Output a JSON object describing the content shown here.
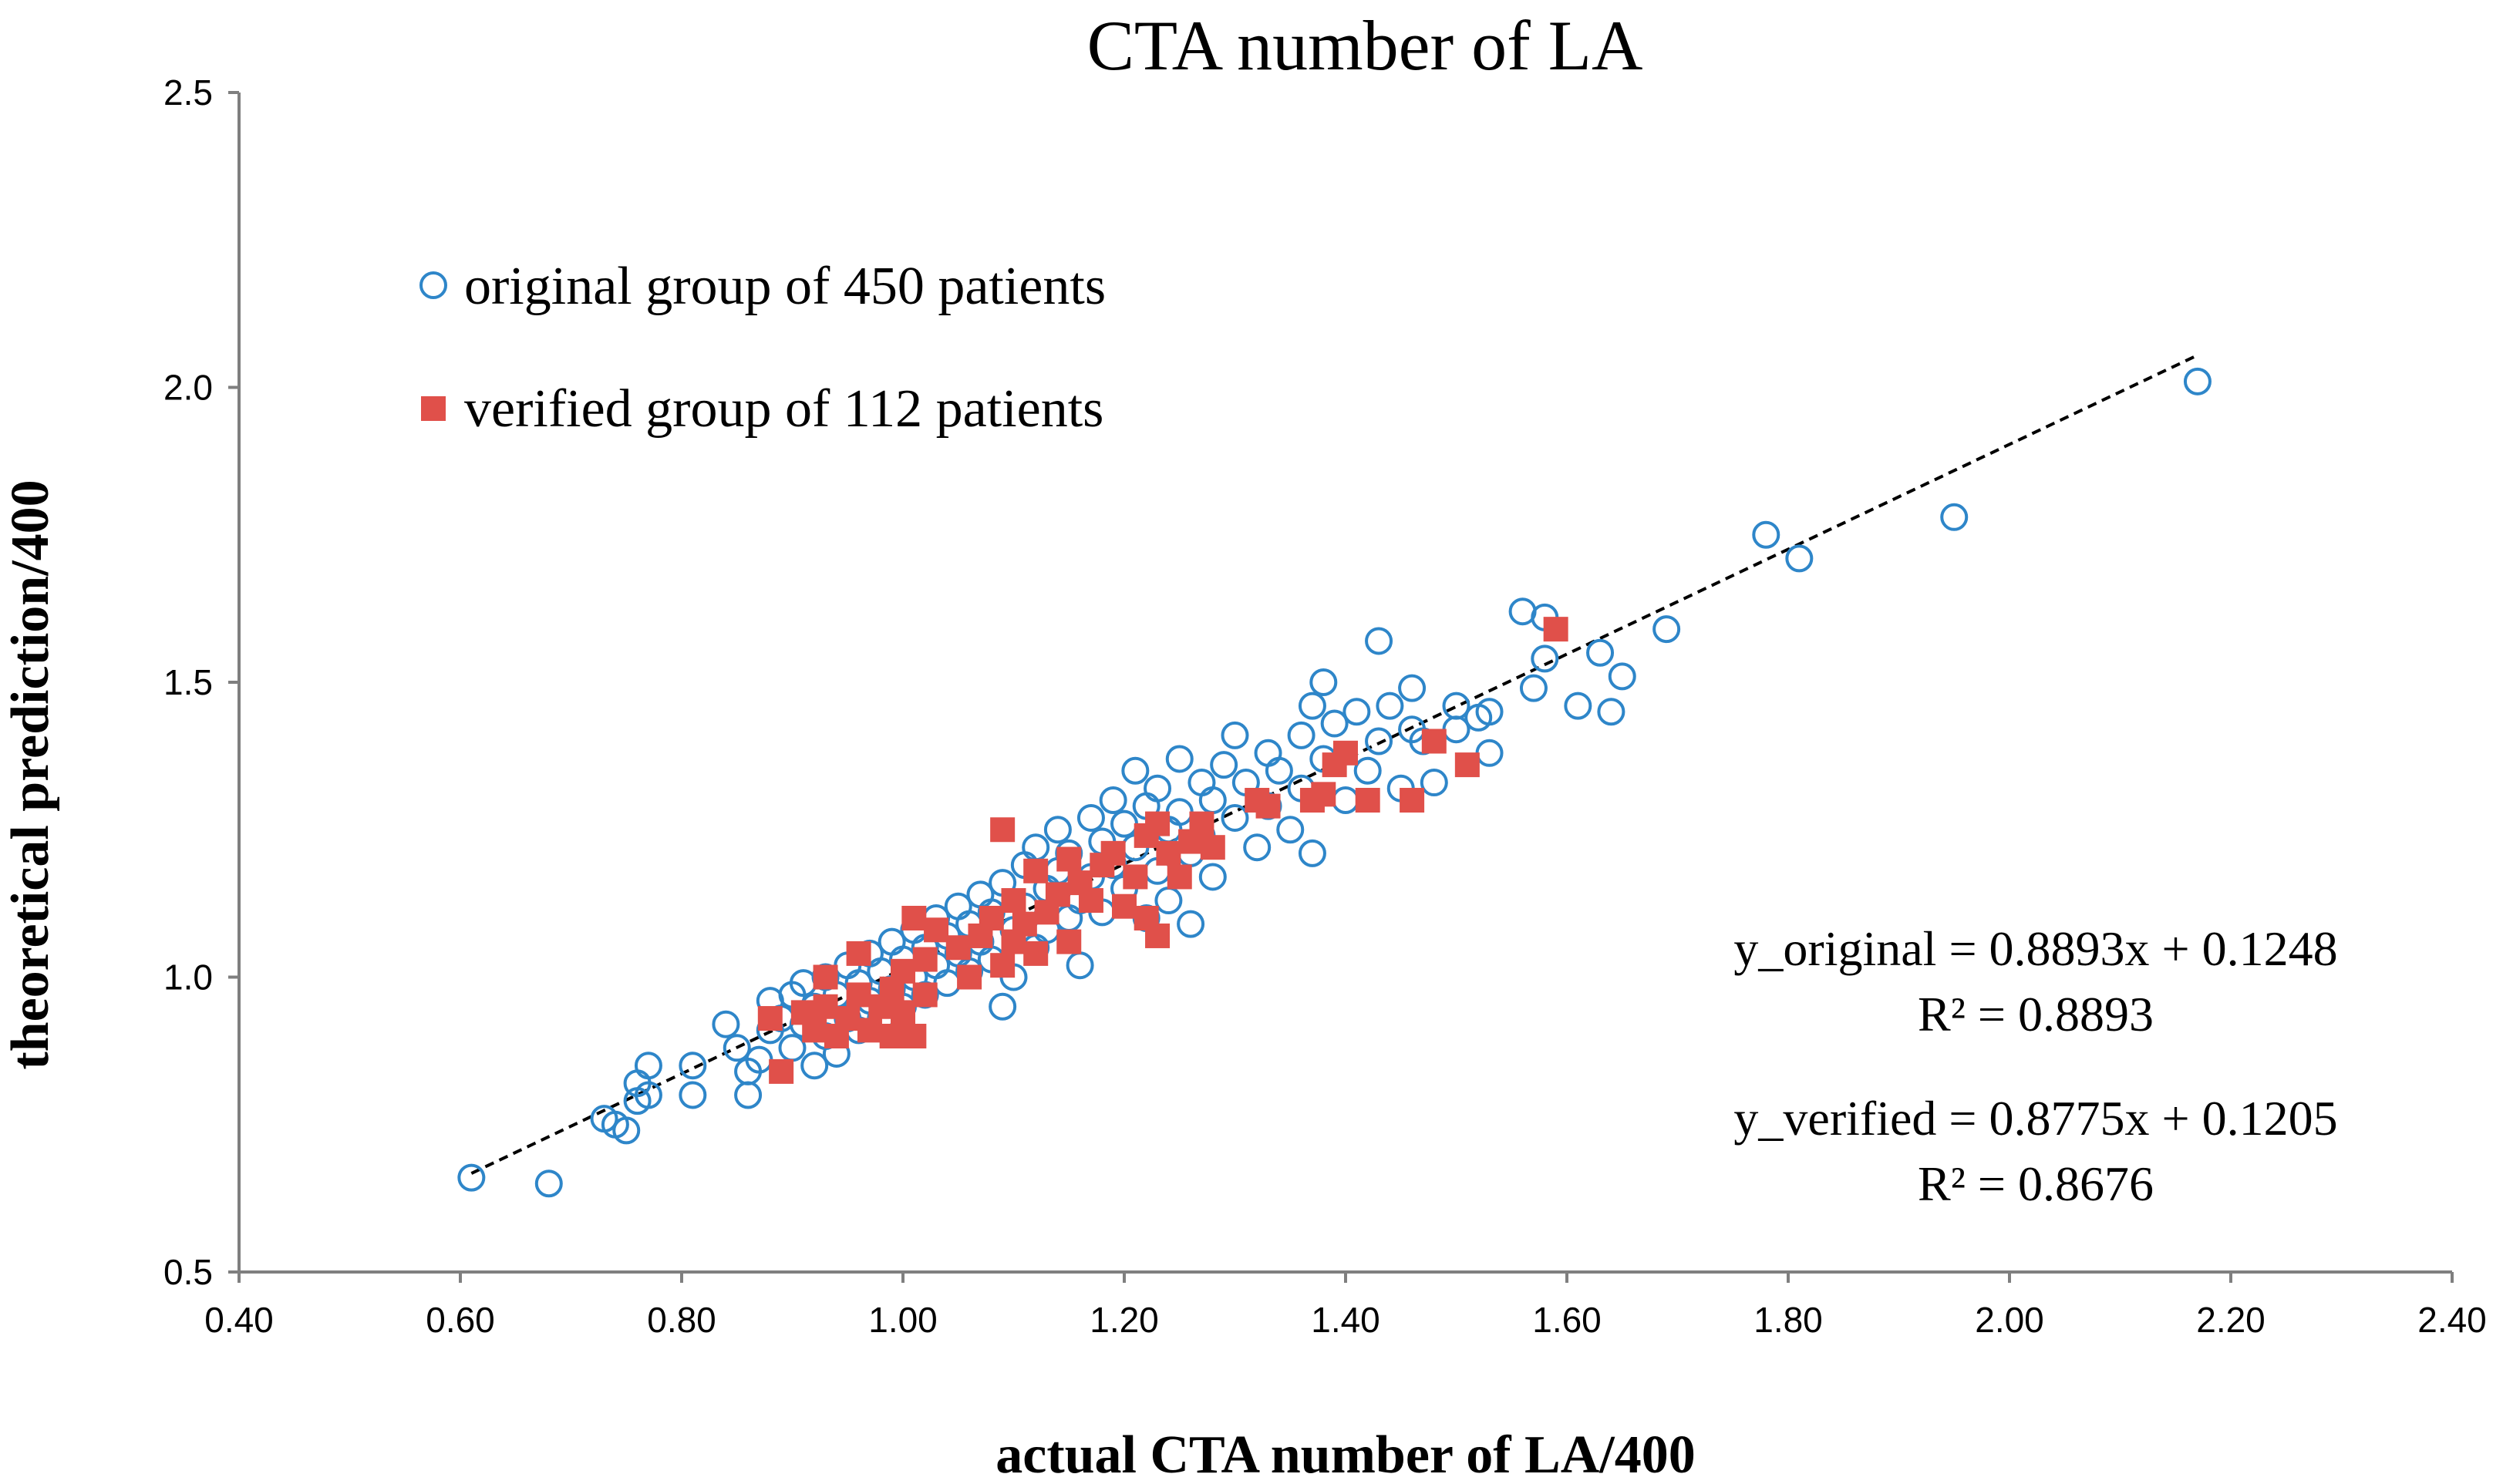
{
  "chart_data": {
    "type": "scatter",
    "title": "CTA number of LA",
    "xlabel": "actual CTA number of LA/400",
    "ylabel": "theoretical prediction/400",
    "xlim": [
      0.4,
      2.4
    ],
    "ylim": [
      0.5,
      2.5
    ],
    "x_ticks": [
      "0.40",
      "0.60",
      "0.80",
      "1.00",
      "1.20",
      "1.40",
      "1.60",
      "1.80",
      "2.00",
      "2.20",
      "2.40"
    ],
    "y_ticks": [
      "0.5",
      "1.0",
      "1.5",
      "2.0",
      "2.5"
    ],
    "grid": false,
    "legend_position": "top-left",
    "series": [
      {
        "name": "original group of 450 patients",
        "marker": "open-circle",
        "color": "#2E86C9",
        "points": [
          [
            0.61,
            0.66
          ],
          [
            0.68,
            0.65
          ],
          [
            0.73,
            0.76
          ],
          [
            0.74,
            0.75
          ],
          [
            0.75,
            0.74
          ],
          [
            0.76,
            0.79
          ],
          [
            0.76,
            0.82
          ],
          [
            0.77,
            0.8
          ],
          [
            0.77,
            0.85
          ],
          [
            0.81,
            0.8
          ],
          [
            0.81,
            0.85
          ],
          [
            0.84,
            0.92
          ],
          [
            0.85,
            0.88
          ],
          [
            0.86,
            0.8
          ],
          [
            0.86,
            0.84
          ],
          [
            0.87,
            0.86
          ],
          [
            0.88,
            0.91
          ],
          [
            0.88,
            0.96
          ],
          [
            0.89,
            0.93
          ],
          [
            0.9,
            0.88
          ],
          [
            0.9,
            0.97
          ],
          [
            0.91,
            0.92
          ],
          [
            0.91,
            0.99
          ],
          [
            0.92,
            0.85
          ],
          [
            0.92,
            0.95
          ],
          [
            0.93,
            0.9
          ],
          [
            0.93,
            1.0
          ],
          [
            0.94,
            0.97
          ],
          [
            0.94,
            0.87
          ],
          [
            0.95,
            0.93
          ],
          [
            0.95,
            1.02
          ],
          [
            0.96,
            0.99
          ],
          [
            0.96,
            0.91
          ],
          [
            0.97,
            1.04
          ],
          [
            0.97,
            0.96
          ],
          [
            0.98,
            1.01
          ],
          [
            0.98,
            0.93
          ],
          [
            0.99,
            1.06
          ],
          [
            0.99,
            0.98
          ],
          [
            1.0,
            1.03
          ],
          [
            1.0,
            0.95
          ],
          [
            1.01,
            1.08
          ],
          [
            1.01,
            1.0
          ],
          [
            1.02,
            1.05
          ],
          [
            1.02,
            0.97
          ],
          [
            1.03,
            1.1
          ],
          [
            1.03,
            1.02
          ],
          [
            1.04,
            1.07
          ],
          [
            1.04,
            0.99
          ],
          [
            1.05,
            1.12
          ],
          [
            1.05,
            1.04
          ],
          [
            1.06,
            1.09
          ],
          [
            1.06,
            1.01
          ],
          [
            1.07,
            1.14
          ],
          [
            1.07,
            1.06
          ],
          [
            1.08,
            1.11
          ],
          [
            1.08,
            1.03
          ],
          [
            1.09,
            0.95
          ],
          [
            1.09,
            1.16
          ],
          [
            1.1,
            1.08
          ],
          [
            1.1,
            1.0
          ],
          [
            1.11,
            1.19
          ],
          [
            1.11,
            1.12
          ],
          [
            1.12,
            1.22
          ],
          [
            1.12,
            1.05
          ],
          [
            1.13,
            1.15
          ],
          [
            1.13,
            1.08
          ],
          [
            1.14,
            1.25
          ],
          [
            1.14,
            1.18
          ],
          [
            1.15,
            1.1
          ],
          [
            1.15,
            1.21
          ],
          [
            1.16,
            1.13
          ],
          [
            1.16,
            1.02
          ],
          [
            1.17,
            1.27
          ],
          [
            1.17,
            1.17
          ],
          [
            1.18,
            1.23
          ],
          [
            1.18,
            1.11
          ],
          [
            1.19,
            1.3
          ],
          [
            1.19,
            1.19
          ],
          [
            1.2,
            1.26
          ],
          [
            1.2,
            1.15
          ],
          [
            1.21,
            1.35
          ],
          [
            1.21,
            1.22
          ],
          [
            1.22,
            1.29
          ],
          [
            1.22,
            1.1
          ],
          [
            1.23,
            1.32
          ],
          [
            1.23,
            1.18
          ],
          [
            1.24,
            1.25
          ],
          [
            1.24,
            1.13
          ],
          [
            1.25,
            1.37
          ],
          [
            1.25,
            1.28
          ],
          [
            1.26,
            1.21
          ],
          [
            1.26,
            1.09
          ],
          [
            1.27,
            1.33
          ],
          [
            1.27,
            1.24
          ],
          [
            1.28,
            1.3
          ],
          [
            1.28,
            1.17
          ],
          [
            1.29,
            1.36
          ],
          [
            1.3,
            1.41
          ],
          [
            1.3,
            1.27
          ],
          [
            1.31,
            1.33
          ],
          [
            1.32,
            1.22
          ],
          [
            1.33,
            1.38
          ],
          [
            1.33,
            1.29
          ],
          [
            1.34,
            1.35
          ],
          [
            1.35,
            1.25
          ],
          [
            1.36,
            1.41
          ],
          [
            1.36,
            1.32
          ],
          [
            1.37,
            1.46
          ],
          [
            1.37,
            1.21
          ],
          [
            1.38,
            1.5
          ],
          [
            1.38,
            1.37
          ],
          [
            1.39,
            1.43
          ],
          [
            1.4,
            1.3
          ],
          [
            1.41,
            1.45
          ],
          [
            1.42,
            1.35
          ],
          [
            1.43,
            1.57
          ],
          [
            1.43,
            1.4
          ],
          [
            1.44,
            1.46
          ],
          [
            1.45,
            1.32
          ],
          [
            1.46,
            1.49
          ],
          [
            1.46,
            1.42
          ],
          [
            1.47,
            1.4
          ],
          [
            1.48,
            1.33
          ],
          [
            1.5,
            1.46
          ],
          [
            1.5,
            1.42
          ],
          [
            1.52,
            1.44
          ],
          [
            1.53,
            1.38
          ],
          [
            1.53,
            1.45
          ],
          [
            1.56,
            1.62
          ],
          [
            1.57,
            1.49
          ],
          [
            1.58,
            1.54
          ],
          [
            1.58,
            1.61
          ],
          [
            1.61,
            1.46
          ],
          [
            1.63,
            1.55
          ],
          [
            1.64,
            1.45
          ],
          [
            1.65,
            1.51
          ],
          [
            1.69,
            1.59
          ],
          [
            1.78,
            1.75
          ],
          [
            1.81,
            1.71
          ],
          [
            1.95,
            1.78
          ],
          [
            2.17,
            2.01
          ]
        ]
      },
      {
        "name": "verified group of 112 patients",
        "marker": "filled-square",
        "color": "#E0504A",
        "points": [
          [
            0.88,
            0.93
          ],
          [
            0.89,
            0.84
          ],
          [
            0.91,
            0.94
          ],
          [
            0.92,
            0.91
          ],
          [
            0.93,
            0.95
          ],
          [
            0.93,
            1.0
          ],
          [
            0.94,
            0.9
          ],
          [
            0.95,
            0.93
          ],
          [
            0.96,
            0.97
          ],
          [
            0.96,
            1.04
          ],
          [
            0.97,
            0.91
          ],
          [
            0.98,
            0.95
          ],
          [
            0.99,
            0.98
          ],
          [
            0.99,
            0.9
          ],
          [
            1.0,
            1.01
          ],
          [
            1.0,
            0.94
          ],
          [
            1.01,
            0.9
          ],
          [
            1.01,
            1.1
          ],
          [
            1.02,
            1.03
          ],
          [
            1.02,
            0.97
          ],
          [
            1.03,
            1.08
          ],
          [
            1.05,
            1.05
          ],
          [
            1.06,
            1.0
          ],
          [
            1.07,
            1.07
          ],
          [
            1.08,
            1.1
          ],
          [
            1.09,
            1.02
          ],
          [
            1.09,
            1.25
          ],
          [
            1.1,
            1.06
          ],
          [
            1.1,
            1.13
          ],
          [
            1.11,
            1.09
          ],
          [
            1.12,
            1.04
          ],
          [
            1.12,
            1.18
          ],
          [
            1.13,
            1.11
          ],
          [
            1.14,
            1.14
          ],
          [
            1.15,
            1.06
          ],
          [
            1.15,
            1.2
          ],
          [
            1.16,
            1.16
          ],
          [
            1.17,
            1.13
          ],
          [
            1.18,
            1.19
          ],
          [
            1.19,
            1.21
          ],
          [
            1.2,
            1.12
          ],
          [
            1.21,
            1.17
          ],
          [
            1.22,
            1.24
          ],
          [
            1.22,
            1.1
          ],
          [
            1.23,
            1.07
          ],
          [
            1.23,
            1.26
          ],
          [
            1.24,
            1.21
          ],
          [
            1.25,
            1.17
          ],
          [
            1.26,
            1.23
          ],
          [
            1.27,
            1.26
          ],
          [
            1.28,
            1.22
          ],
          [
            1.32,
            1.3
          ],
          [
            1.33,
            1.29
          ],
          [
            1.37,
            1.3
          ],
          [
            1.38,
            1.31
          ],
          [
            1.39,
            1.36
          ],
          [
            1.4,
            1.38
          ],
          [
            1.42,
            1.3
          ],
          [
            1.46,
            1.3
          ],
          [
            1.48,
            1.4
          ],
          [
            1.51,
            1.36
          ],
          [
            1.59,
            1.59
          ]
        ]
      }
    ],
    "trendline": {
      "style": "dashed",
      "color": "#000000",
      "x_range": [
        0.61,
        2.17
      ],
      "slope": 0.8893,
      "intercept": 0.1248
    },
    "annotations": [
      {
        "text": "y_original = 0.8893x + 0.1248"
      },
      {
        "text": "R² = 0.8893"
      },
      {
        "text": "y_verified = 0.8775x + 0.1205"
      },
      {
        "text": "R² = 0.8676"
      }
    ]
  }
}
